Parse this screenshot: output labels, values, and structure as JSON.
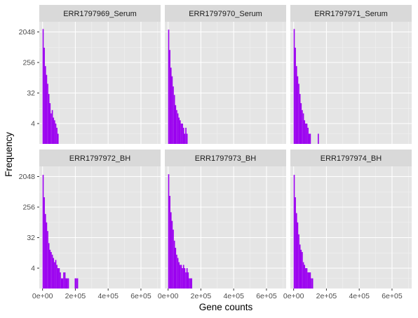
{
  "chart_data": {
    "type": "bar",
    "subtype": "histogram-facets",
    "xlabel": "Gene counts",
    "ylabel": "Frequency",
    "y_scale": "log2",
    "xlim": [
      -20000,
      720000
    ],
    "ylim_log2": [
      0,
      12
    ],
    "x_ticks": [
      0,
      200000,
      400000,
      600000
    ],
    "x_tick_labels": [
      "0e+00",
      "2e+05",
      "4e+05",
      "6e+05"
    ],
    "y_ticks": [
      4,
      32,
      256,
      2048
    ],
    "y_tick_labels": [
      "4",
      "32",
      "256",
      "2048"
    ],
    "bin_width": 7000,
    "fill_color": "#9b00f0",
    "panel_background": "#e5e5e5",
    "strip_background": "#d9d9d9",
    "grid": true,
    "layout": {
      "rows": 2,
      "cols": 3
    },
    "facets": [
      {
        "name": "ERR1797969_Serum",
        "bins": [
          {
            "x": 0,
            "count": 2500
          },
          {
            "x": 7000,
            "count": 700
          },
          {
            "x": 14000,
            "count": 200
          },
          {
            "x": 21000,
            "count": 110
          },
          {
            "x": 28000,
            "count": 60
          },
          {
            "x": 35000,
            "count": 30
          },
          {
            "x": 42000,
            "count": 16
          },
          {
            "x": 49000,
            "count": 8
          },
          {
            "x": 56000,
            "count": 10
          },
          {
            "x": 63000,
            "count": 6
          },
          {
            "x": 70000,
            "count": 5
          },
          {
            "x": 77000,
            "count": 4
          },
          {
            "x": 84000,
            "count": 3
          },
          {
            "x": 91000,
            "count": 2
          },
          {
            "x": 98000,
            "count": 1
          },
          {
            "x": 105000,
            "count": 1
          },
          {
            "x": 210000,
            "count": 1
          }
        ]
      },
      {
        "name": "ERR1797970_Serum",
        "bins": [
          {
            "x": 0,
            "count": 2400
          },
          {
            "x": 7000,
            "count": 600
          },
          {
            "x": 14000,
            "count": 180
          },
          {
            "x": 21000,
            "count": 100
          },
          {
            "x": 28000,
            "count": 50
          },
          {
            "x": 35000,
            "count": 28
          },
          {
            "x": 42000,
            "count": 14
          },
          {
            "x": 49000,
            "count": 10
          },
          {
            "x": 56000,
            "count": 8
          },
          {
            "x": 63000,
            "count": 6
          },
          {
            "x": 70000,
            "count": 5
          },
          {
            "x": 77000,
            "count": 4
          },
          {
            "x": 84000,
            "count": 4
          },
          {
            "x": 91000,
            "count": 3
          },
          {
            "x": 98000,
            "count": 2
          },
          {
            "x": 105000,
            "count": 3
          },
          {
            "x": 112000,
            "count": 2
          },
          {
            "x": 119000,
            "count": 1
          },
          {
            "x": 126000,
            "count": 1
          },
          {
            "x": 224000,
            "count": 1
          },
          {
            "x": 245000,
            "count": 1
          }
        ]
      },
      {
        "name": "ERR1797971_Serum",
        "bins": [
          {
            "x": 0,
            "count": 2500
          },
          {
            "x": 7000,
            "count": 700
          },
          {
            "x": 14000,
            "count": 200
          },
          {
            "x": 21000,
            "count": 100
          },
          {
            "x": 28000,
            "count": 60
          },
          {
            "x": 35000,
            "count": 30
          },
          {
            "x": 42000,
            "count": 16
          },
          {
            "x": 49000,
            "count": 10
          },
          {
            "x": 56000,
            "count": 8
          },
          {
            "x": 63000,
            "count": 5
          },
          {
            "x": 70000,
            "count": 4
          },
          {
            "x": 77000,
            "count": 4
          },
          {
            "x": 84000,
            "count": 3
          },
          {
            "x": 91000,
            "count": 2
          },
          {
            "x": 98000,
            "count": 2
          },
          {
            "x": 105000,
            "count": 1
          },
          {
            "x": 112000,
            "count": 1
          },
          {
            "x": 147000,
            "count": 2
          },
          {
            "x": 168000,
            "count": 1
          },
          {
            "x": 217000,
            "count": 1
          }
        ]
      },
      {
        "name": "ERR1797972_BH",
        "bins": [
          {
            "x": 0,
            "count": 2300
          },
          {
            "x": 7000,
            "count": 500
          },
          {
            "x": 14000,
            "count": 160
          },
          {
            "x": 21000,
            "count": 90
          },
          {
            "x": 28000,
            "count": 50
          },
          {
            "x": 35000,
            "count": 22
          },
          {
            "x": 42000,
            "count": 14
          },
          {
            "x": 49000,
            "count": 12
          },
          {
            "x": 56000,
            "count": 10
          },
          {
            "x": 63000,
            "count": 8
          },
          {
            "x": 70000,
            "count": 6
          },
          {
            "x": 77000,
            "count": 7
          },
          {
            "x": 84000,
            "count": 5
          },
          {
            "x": 91000,
            "count": 4
          },
          {
            "x": 98000,
            "count": 4
          },
          {
            "x": 105000,
            "count": 3
          },
          {
            "x": 112000,
            "count": 2
          },
          {
            "x": 119000,
            "count": 2
          },
          {
            "x": 126000,
            "count": 3
          },
          {
            "x": 133000,
            "count": 3
          },
          {
            "x": 140000,
            "count": 2
          },
          {
            "x": 147000,
            "count": 2
          },
          {
            "x": 154000,
            "count": 2
          },
          {
            "x": 196000,
            "count": 2
          },
          {
            "x": 203000,
            "count": 2
          },
          {
            "x": 210000,
            "count": 2
          }
        ]
      },
      {
        "name": "ERR1797973_BH",
        "bins": [
          {
            "x": 0,
            "count": 2400
          },
          {
            "x": 7000,
            "count": 550
          },
          {
            "x": 14000,
            "count": 180
          },
          {
            "x": 21000,
            "count": 100
          },
          {
            "x": 28000,
            "count": 55
          },
          {
            "x": 35000,
            "count": 26
          },
          {
            "x": 42000,
            "count": 16
          },
          {
            "x": 49000,
            "count": 10
          },
          {
            "x": 56000,
            "count": 8
          },
          {
            "x": 63000,
            "count": 6
          },
          {
            "x": 70000,
            "count": 5
          },
          {
            "x": 77000,
            "count": 5
          },
          {
            "x": 84000,
            "count": 4
          },
          {
            "x": 91000,
            "count": 5
          },
          {
            "x": 98000,
            "count": 4
          },
          {
            "x": 105000,
            "count": 3
          },
          {
            "x": 112000,
            "count": 4
          },
          {
            "x": 119000,
            "count": 3
          },
          {
            "x": 126000,
            "count": 2
          },
          {
            "x": 133000,
            "count": 2
          },
          {
            "x": 140000,
            "count": 2
          },
          {
            "x": 147000,
            "count": 1
          },
          {
            "x": 154000,
            "count": 1
          },
          {
            "x": 161000,
            "count": 1
          },
          {
            "x": 168000,
            "count": 1
          },
          {
            "x": 175000,
            "count": 1
          },
          {
            "x": 217000,
            "count": 1
          }
        ]
      },
      {
        "name": "ERR1797974_BH",
        "bins": [
          {
            "x": 0,
            "count": 2300
          },
          {
            "x": 7000,
            "count": 500
          },
          {
            "x": 14000,
            "count": 170
          },
          {
            "x": 21000,
            "count": 90
          },
          {
            "x": 28000,
            "count": 40
          },
          {
            "x": 35000,
            "count": 20
          },
          {
            "x": 42000,
            "count": 14
          },
          {
            "x": 49000,
            "count": 12
          },
          {
            "x": 56000,
            "count": 6
          },
          {
            "x": 63000,
            "count": 5
          },
          {
            "x": 70000,
            "count": 4
          },
          {
            "x": 77000,
            "count": 4
          },
          {
            "x": 84000,
            "count": 3
          },
          {
            "x": 91000,
            "count": 3
          },
          {
            "x": 98000,
            "count": 3
          },
          {
            "x": 105000,
            "count": 2
          },
          {
            "x": 112000,
            "count": 2
          },
          {
            "x": 119000,
            "count": 1
          },
          {
            "x": 126000,
            "count": 1
          },
          {
            "x": 133000,
            "count": 1
          },
          {
            "x": 161000,
            "count": 1
          },
          {
            "x": 175000,
            "count": 1
          },
          {
            "x": 336000,
            "count": 1
          }
        ]
      }
    ]
  }
}
